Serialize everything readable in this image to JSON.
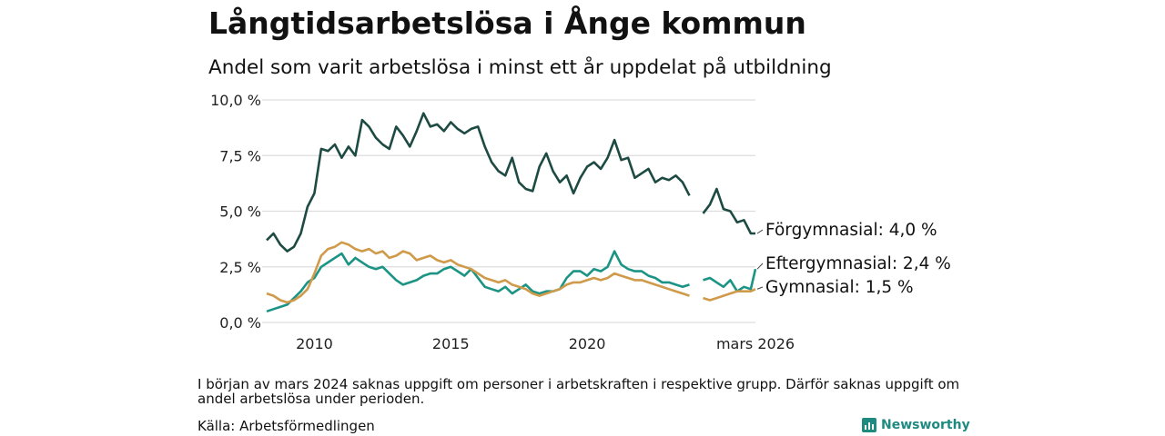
{
  "title": "Långtidsarbetslösa i Ånge kommun",
  "subtitle": "Andel som varit arbetslösa i minst ett år uppdelat på utbildning",
  "note": "I början av mars 2024 saknas uppgift om personer i arbetskraften i respektive grupp. Därför saknas uppgift om andel arbetslösa under perioden.",
  "source": "Källa: Arbetsförmedlingen",
  "brand": "Newsworthy",
  "colors": {
    "forgymnasial": "#1d4a42",
    "eftergymnasial": "#1c9485",
    "gymnasial": "#cf9a4a",
    "grid": "#dddddd"
  },
  "chart_data": {
    "type": "line",
    "title": "Långtidsarbetslösa i Ånge kommun",
    "subtitle": "Andel som varit arbetslösa i minst ett år uppdelat på utbildning",
    "xlabel": "",
    "ylabel": "",
    "xlim": [
      2008.25,
      2026.17
    ],
    "ylim": [
      0,
      10
    ],
    "y_ticks": [
      0,
      2.5,
      5,
      7.5,
      10
    ],
    "y_tick_labels": [
      "0,0 %",
      "2,5 %",
      "5,0 %",
      "7,5 %",
      "10,0 %"
    ],
    "x_ticks": [
      2010,
      2015,
      2020,
      2026.17
    ],
    "x_tick_labels": [
      "2010",
      "2015",
      "2020",
      "mars 2026"
    ],
    "grid": true,
    "gap": [
      2023.8,
      2024.2
    ],
    "series": [
      {
        "name": "Förgymnasial",
        "label": "Förgymnasial: 4,0 %",
        "color": "#1d4a42",
        "x": [
          2008.25,
          2008.5,
          2008.75,
          2009.0,
          2009.25,
          2009.5,
          2009.75,
          2010.0,
          2010.25,
          2010.5,
          2010.75,
          2011.0,
          2011.25,
          2011.5,
          2011.75,
          2012.0,
          2012.25,
          2012.5,
          2012.75,
          2013.0,
          2013.25,
          2013.5,
          2013.75,
          2014.0,
          2014.25,
          2014.5,
          2014.75,
          2015.0,
          2015.25,
          2015.5,
          2015.75,
          2016.0,
          2016.25,
          2016.5,
          2016.75,
          2017.0,
          2017.25,
          2017.5,
          2017.75,
          2018.0,
          2018.25,
          2018.5,
          2018.75,
          2019.0,
          2019.25,
          2019.5,
          2019.75,
          2020.0,
          2020.25,
          2020.5,
          2020.75,
          2021.0,
          2021.25,
          2021.5,
          2021.75,
          2022.0,
          2022.25,
          2022.5,
          2022.75,
          2023.0,
          2023.25,
          2023.5,
          2023.75,
          2024.25,
          2024.5,
          2024.75,
          2025.0,
          2025.25,
          2025.5,
          2025.75,
          2026.0,
          2026.17
        ],
        "y": [
          3.7,
          4.0,
          3.5,
          3.2,
          3.4,
          4.0,
          5.2,
          5.8,
          7.8,
          7.7,
          8.0,
          7.4,
          7.9,
          7.5,
          9.1,
          8.8,
          8.3,
          8.0,
          7.8,
          8.8,
          8.4,
          7.9,
          8.6,
          9.4,
          8.8,
          8.9,
          8.6,
          9.0,
          8.7,
          8.5,
          8.7,
          8.8,
          7.9,
          7.2,
          6.8,
          6.6,
          7.4,
          6.3,
          6.0,
          5.9,
          7.0,
          7.6,
          6.8,
          6.3,
          6.6,
          5.8,
          6.5,
          7.0,
          7.2,
          6.9,
          7.4,
          8.2,
          7.3,
          7.4,
          6.5,
          6.7,
          6.9,
          6.3,
          6.5,
          6.4,
          6.6,
          6.3,
          5.7,
          4.9,
          5.3,
          6.0,
          5.1,
          5.0,
          4.5,
          4.6,
          4.0,
          4.0
        ]
      },
      {
        "name": "Eftergymnasial",
        "label": "Eftergymnasial: 2,4 %",
        "color": "#1c9485",
        "x": [
          2008.25,
          2008.5,
          2008.75,
          2009.0,
          2009.25,
          2009.5,
          2009.75,
          2010.0,
          2010.25,
          2010.5,
          2010.75,
          2011.0,
          2011.25,
          2011.5,
          2011.75,
          2012.0,
          2012.25,
          2012.5,
          2012.75,
          2013.0,
          2013.25,
          2013.5,
          2013.75,
          2014.0,
          2014.25,
          2014.5,
          2014.75,
          2015.0,
          2015.25,
          2015.5,
          2015.75,
          2016.0,
          2016.25,
          2016.5,
          2016.75,
          2017.0,
          2017.25,
          2017.5,
          2017.75,
          2018.0,
          2018.25,
          2018.5,
          2018.75,
          2019.0,
          2019.25,
          2019.5,
          2019.75,
          2020.0,
          2020.25,
          2020.5,
          2020.75,
          2021.0,
          2021.25,
          2021.5,
          2021.75,
          2022.0,
          2022.25,
          2022.5,
          2022.75,
          2023.0,
          2023.25,
          2023.5,
          2023.75,
          2024.25,
          2024.5,
          2024.75,
          2025.0,
          2025.25,
          2025.5,
          2025.75,
          2026.0,
          2026.17
        ],
        "y": [
          0.5,
          0.6,
          0.7,
          0.8,
          1.1,
          1.4,
          1.8,
          2.0,
          2.5,
          2.7,
          2.9,
          3.1,
          2.6,
          2.9,
          2.7,
          2.5,
          2.4,
          2.5,
          2.2,
          1.9,
          1.7,
          1.8,
          1.9,
          2.1,
          2.2,
          2.2,
          2.4,
          2.5,
          2.3,
          2.1,
          2.4,
          2.0,
          1.6,
          1.5,
          1.4,
          1.6,
          1.3,
          1.5,
          1.7,
          1.4,
          1.3,
          1.4,
          1.4,
          1.5,
          2.0,
          2.3,
          2.3,
          2.1,
          2.4,
          2.3,
          2.5,
          3.2,
          2.6,
          2.4,
          2.3,
          2.3,
          2.1,
          2.0,
          1.8,
          1.8,
          1.7,
          1.6,
          1.7,
          1.9,
          2.0,
          1.8,
          1.6,
          1.9,
          1.4,
          1.6,
          1.5,
          2.4
        ]
      },
      {
        "name": "Gymnasial",
        "label": "Gymnasial: 1,5 %",
        "color": "#cf9a4a",
        "x": [
          2008.25,
          2008.5,
          2008.75,
          2009.0,
          2009.25,
          2009.5,
          2009.75,
          2010.0,
          2010.25,
          2010.5,
          2010.75,
          2011.0,
          2011.25,
          2011.5,
          2011.75,
          2012.0,
          2012.25,
          2012.5,
          2012.75,
          2013.0,
          2013.25,
          2013.5,
          2013.75,
          2014.0,
          2014.25,
          2014.5,
          2014.75,
          2015.0,
          2015.25,
          2015.5,
          2015.75,
          2016.0,
          2016.25,
          2016.5,
          2016.75,
          2017.0,
          2017.25,
          2017.5,
          2017.75,
          2018.0,
          2018.25,
          2018.5,
          2018.75,
          2019.0,
          2019.25,
          2019.5,
          2019.75,
          2020.0,
          2020.25,
          2020.5,
          2020.75,
          2021.0,
          2021.25,
          2021.5,
          2021.75,
          2022.0,
          2022.25,
          2022.5,
          2022.75,
          2023.0,
          2023.25,
          2023.5,
          2023.75,
          2024.25,
          2024.5,
          2024.75,
          2025.0,
          2025.25,
          2025.5,
          2025.75,
          2026.0,
          2026.17
        ],
        "y": [
          1.3,
          1.2,
          1.0,
          0.9,
          1.0,
          1.2,
          1.5,
          2.2,
          3.0,
          3.3,
          3.4,
          3.6,
          3.5,
          3.3,
          3.2,
          3.3,
          3.1,
          3.2,
          2.9,
          3.0,
          3.2,
          3.1,
          2.8,
          2.9,
          3.0,
          2.8,
          2.7,
          2.8,
          2.6,
          2.5,
          2.4,
          2.2,
          2.0,
          1.9,
          1.8,
          1.9,
          1.7,
          1.6,
          1.5,
          1.3,
          1.2,
          1.3,
          1.4,
          1.5,
          1.7,
          1.8,
          1.8,
          1.9,
          2.0,
          1.9,
          2.0,
          2.2,
          2.1,
          2.0,
          1.9,
          1.9,
          1.8,
          1.7,
          1.6,
          1.5,
          1.4,
          1.3,
          1.2,
          1.1,
          1.0,
          1.1,
          1.2,
          1.3,
          1.4,
          1.4,
          1.4,
          1.5
        ]
      }
    ]
  }
}
